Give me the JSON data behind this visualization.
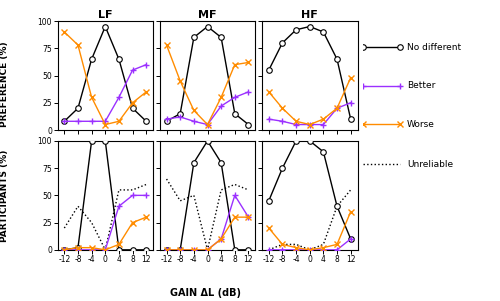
{
  "x": [
    -12,
    -8,
    -4,
    0,
    4,
    8,
    12
  ],
  "top": {
    "LF": {
      "no_diff": [
        8,
        20,
        65,
        95,
        65,
        20,
        8
      ],
      "better": [
        8,
        8,
        8,
        8,
        30,
        55,
        60
      ],
      "worse": [
        90,
        78,
        30,
        5,
        8,
        25,
        35
      ]
    },
    "MF": {
      "no_diff": [
        8,
        15,
        85,
        95,
        85,
        15,
        5
      ],
      "better": [
        10,
        12,
        8,
        5,
        22,
        30,
        35
      ],
      "worse": [
        78,
        45,
        18,
        5,
        30,
        60,
        62
      ]
    },
    "HF": {
      "no_diff": [
        55,
        80,
        92,
        95,
        90,
        65,
        10
      ],
      "better": [
        10,
        8,
        5,
        5,
        5,
        20,
        25
      ],
      "worse": [
        35,
        20,
        8,
        5,
        10,
        20,
        48
      ]
    }
  },
  "bottom": {
    "LF": {
      "no_diff": [
        0,
        2,
        100,
        100,
        0,
        0,
        0
      ],
      "better": [
        0,
        0,
        0,
        0,
        40,
        50,
        50
      ],
      "worse": [
        0,
        2,
        2,
        0,
        5,
        25,
        30
      ],
      "unreliable": [
        20,
        40,
        25,
        0,
        55,
        55,
        60
      ]
    },
    "MF": {
      "no_diff": [
        0,
        0,
        80,
        100,
        80,
        0,
        0
      ],
      "better": [
        0,
        0,
        0,
        0,
        10,
        50,
        30
      ],
      "worse": [
        0,
        0,
        0,
        0,
        10,
        30,
        30
      ],
      "unreliable": [
        65,
        45,
        50,
        0,
        55,
        60,
        55
      ]
    },
    "HF": {
      "no_diff": [
        45,
        75,
        100,
        100,
        90,
        40,
        10
      ],
      "better": [
        0,
        0,
        0,
        0,
        0,
        0,
        10
      ],
      "worse": [
        20,
        5,
        2,
        0,
        2,
        5,
        35
      ],
      "unreliable": [
        0,
        5,
        5,
        0,
        5,
        40,
        55
      ]
    }
  },
  "colors": {
    "no_diff": "#000000",
    "better": "#9b30ff",
    "worse": "#ff8c00",
    "unreliable": "#000000"
  },
  "freq_labels": [
    "LF",
    "MF",
    "HF"
  ],
  "lw": 1.0,
  "ms": 4,
  "legend_fontsize": 6.5,
  "tick_fontsize": 5.5,
  "label_fontsize": 6.5,
  "title_fontsize": 8
}
